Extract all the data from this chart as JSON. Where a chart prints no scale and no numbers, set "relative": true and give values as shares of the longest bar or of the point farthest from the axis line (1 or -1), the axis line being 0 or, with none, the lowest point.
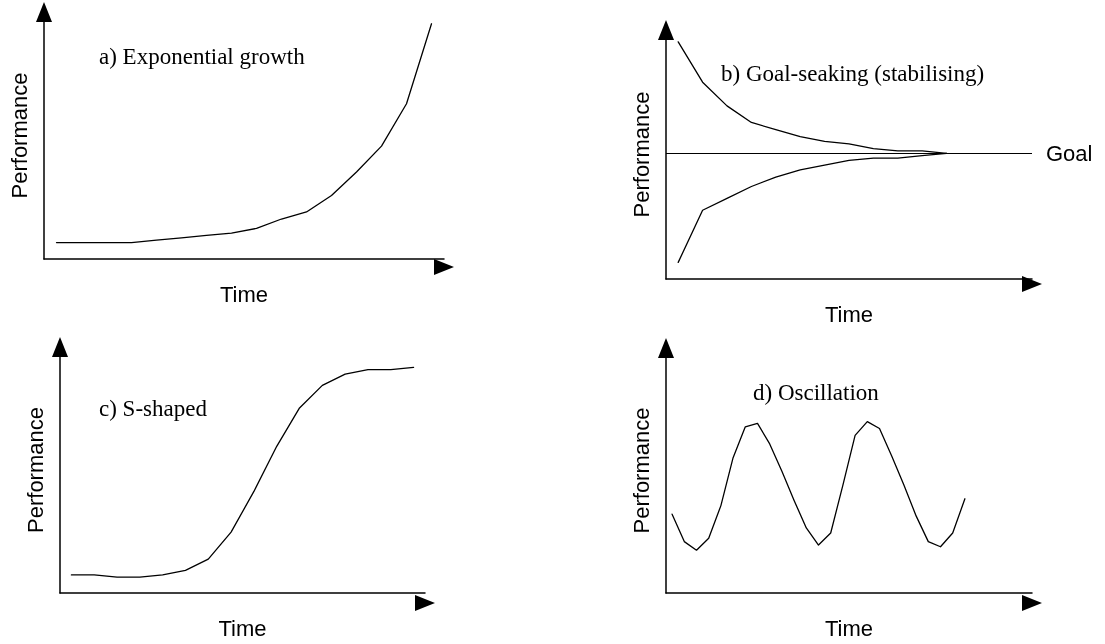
{
  "chart_data": [
    {
      "type": "line",
      "title": "a) Exponential growth",
      "xlabel": "Time",
      "ylabel": "Performance",
      "relative": true,
      "marker": "none",
      "line_style": "solid",
      "grid": false,
      "categories": [
        null,
        null,
        null,
        null,
        null,
        null,
        null,
        null,
        null,
        null,
        null,
        null,
        null,
        null,
        null,
        null
      ],
      "series": [
        {
          "color": "#000000",
          "values": [
            0.07,
            0.07,
            0.07,
            0.07,
            0.08,
            0.09,
            0.1,
            0.11,
            0.13,
            0.17,
            0.2,
            0.27,
            0.37,
            0.48,
            0.66,
            1
          ]
        }
      ]
    },
    {
      "type": "line",
      "title": "b) Goal-seaking (stabilising)",
      "xlabel": "Time",
      "ylabel": "Performance",
      "relative": true,
      "marker": "none",
      "line_style": "solid",
      "grid": false,
      "categories": [
        null,
        null,
        null,
        null,
        null,
        null,
        null,
        null,
        null,
        null,
        null,
        null,
        null,
        null,
        null
      ],
      "ref_lines": [
        {
          "axis": "y",
          "value": 0.53,
          "label": "Goal",
          "color": "#000000"
        }
      ],
      "series": [
        {
          "color": "#000000",
          "values": [
            1,
            0.83,
            0.73,
            0.66,
            0.63,
            0.6,
            0.58,
            0.57,
            0.55,
            0.54,
            0.54,
            0.53,
            null,
            null,
            null
          ]
        },
        {
          "color": "#000000",
          "values": [
            0.07,
            0.29,
            0.34,
            0.39,
            0.43,
            0.46,
            0.48,
            0.5,
            0.51,
            0.51,
            0.52,
            0.53,
            null,
            null,
            null
          ]
        }
      ]
    },
    {
      "type": "line",
      "title": "c) S-shaped",
      "xlabel": "Time",
      "ylabel": "Performance",
      "relative": true,
      "marker": "none",
      "line_style": "solid",
      "grid": false,
      "categories": [
        null,
        null,
        null,
        null,
        null,
        null,
        null,
        null,
        null,
        null,
        null,
        null,
        null,
        null,
        null,
        null
      ],
      "series": [
        {
          "color": "#000000",
          "values": [
            0.08,
            0.08,
            0.07,
            0.07,
            0.08,
            0.1,
            0.15,
            0.27,
            0.45,
            0.65,
            0.82,
            0.92,
            0.97,
            0.99,
            0.99,
            1
          ]
        }
      ]
    },
    {
      "type": "line",
      "title": "d) Oscillation",
      "xlabel": "Time",
      "ylabel": "Performance",
      "relative": true,
      "marker": "none",
      "line_style": "solid",
      "grid": false,
      "categories": [
        null,
        null,
        null,
        null,
        null,
        null,
        null,
        null,
        null,
        null,
        null,
        null,
        null,
        null,
        null,
        null,
        null,
        null,
        null,
        null,
        null,
        null,
        null,
        null,
        null,
        null,
        null,
        null,
        null,
        null
      ],
      "series": [
        {
          "color": "#000000",
          "values": [
            0.46,
            0.3,
            0.25,
            0.32,
            0.51,
            0.79,
            0.97,
            0.99,
            0.87,
            0.71,
            0.54,
            0.38,
            0.28,
            0.35,
            0.63,
            0.92,
            1,
            0.96,
            0.8,
            0.63,
            0.45,
            0.3,
            0.27,
            0.35,
            0.55,
            null,
            null,
            null,
            null,
            null
          ]
        }
      ]
    }
  ]
}
